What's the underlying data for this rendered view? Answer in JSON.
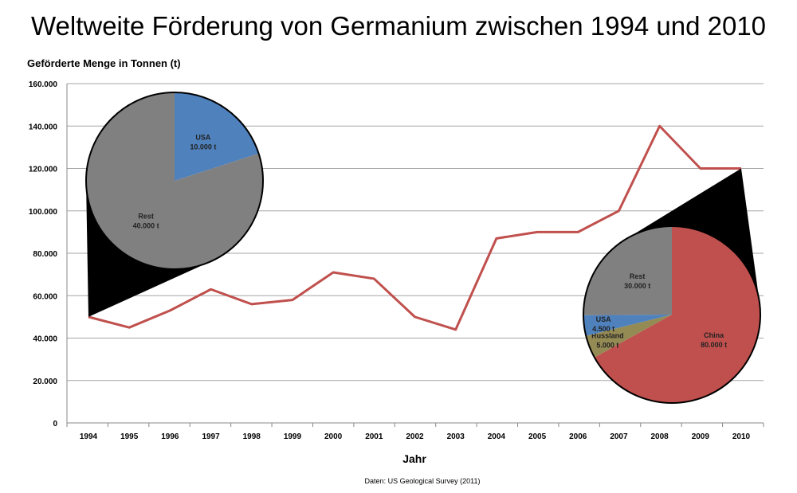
{
  "chart_data": {
    "type": "line",
    "title": "Weltweite Förderung von Germanium zwischen 1994 und 2010",
    "ylabel": "Geförderte Menge in Tonnen (t)",
    "xlabel": "Jahr",
    "source": "Daten: US Geological Survey (2011)",
    "ylim": [
      0,
      160000
    ],
    "yticks": [
      0,
      20000,
      40000,
      60000,
      80000,
      100000,
      120000,
      140000,
      160000
    ],
    "ytick_labels": [
      "0",
      "20.000",
      "40.000",
      "60.000",
      "80.000",
      "100.000",
      "120.000",
      "140.000",
      "160.000"
    ],
    "grid": "horizontal",
    "categories": [
      "1994",
      "1995",
      "1996",
      "1997",
      "1998",
      "1999",
      "2000",
      "2001",
      "2002",
      "2003",
      "2004",
      "2005",
      "2006",
      "2007",
      "2008",
      "2009",
      "2010"
    ],
    "values": [
      50000,
      45000,
      53000,
      63000,
      56000,
      58000,
      71000,
      68000,
      50000,
      44000,
      87000,
      90000,
      90000,
      100000,
      140000,
      120000,
      120000
    ],
    "line_color": "#c0504d",
    "insets": [
      {
        "type": "pie",
        "callout_year": "1994",
        "slices": [
          {
            "name": "USA",
            "value": 10000,
            "label": "10.000 t",
            "color": "#4f81bd"
          },
          {
            "name": "Rest",
            "value": 40000,
            "label": "40.000 t",
            "color": "#808080"
          }
        ]
      },
      {
        "type": "pie",
        "callout_year": "2010",
        "slices": [
          {
            "name": "China",
            "value": 80000,
            "label": "80.000 t",
            "color": "#c0504d"
          },
          {
            "name": "Russland",
            "value": 5000,
            "label": "5.000 t",
            "color": "#948a54"
          },
          {
            "name": "USA",
            "value": 4500,
            "label": "4.500 t",
            "color": "#4f81bd"
          },
          {
            "name": "Rest",
            "value": 30000,
            "label": "30.000 t",
            "color": "#808080"
          }
        ]
      }
    ]
  }
}
